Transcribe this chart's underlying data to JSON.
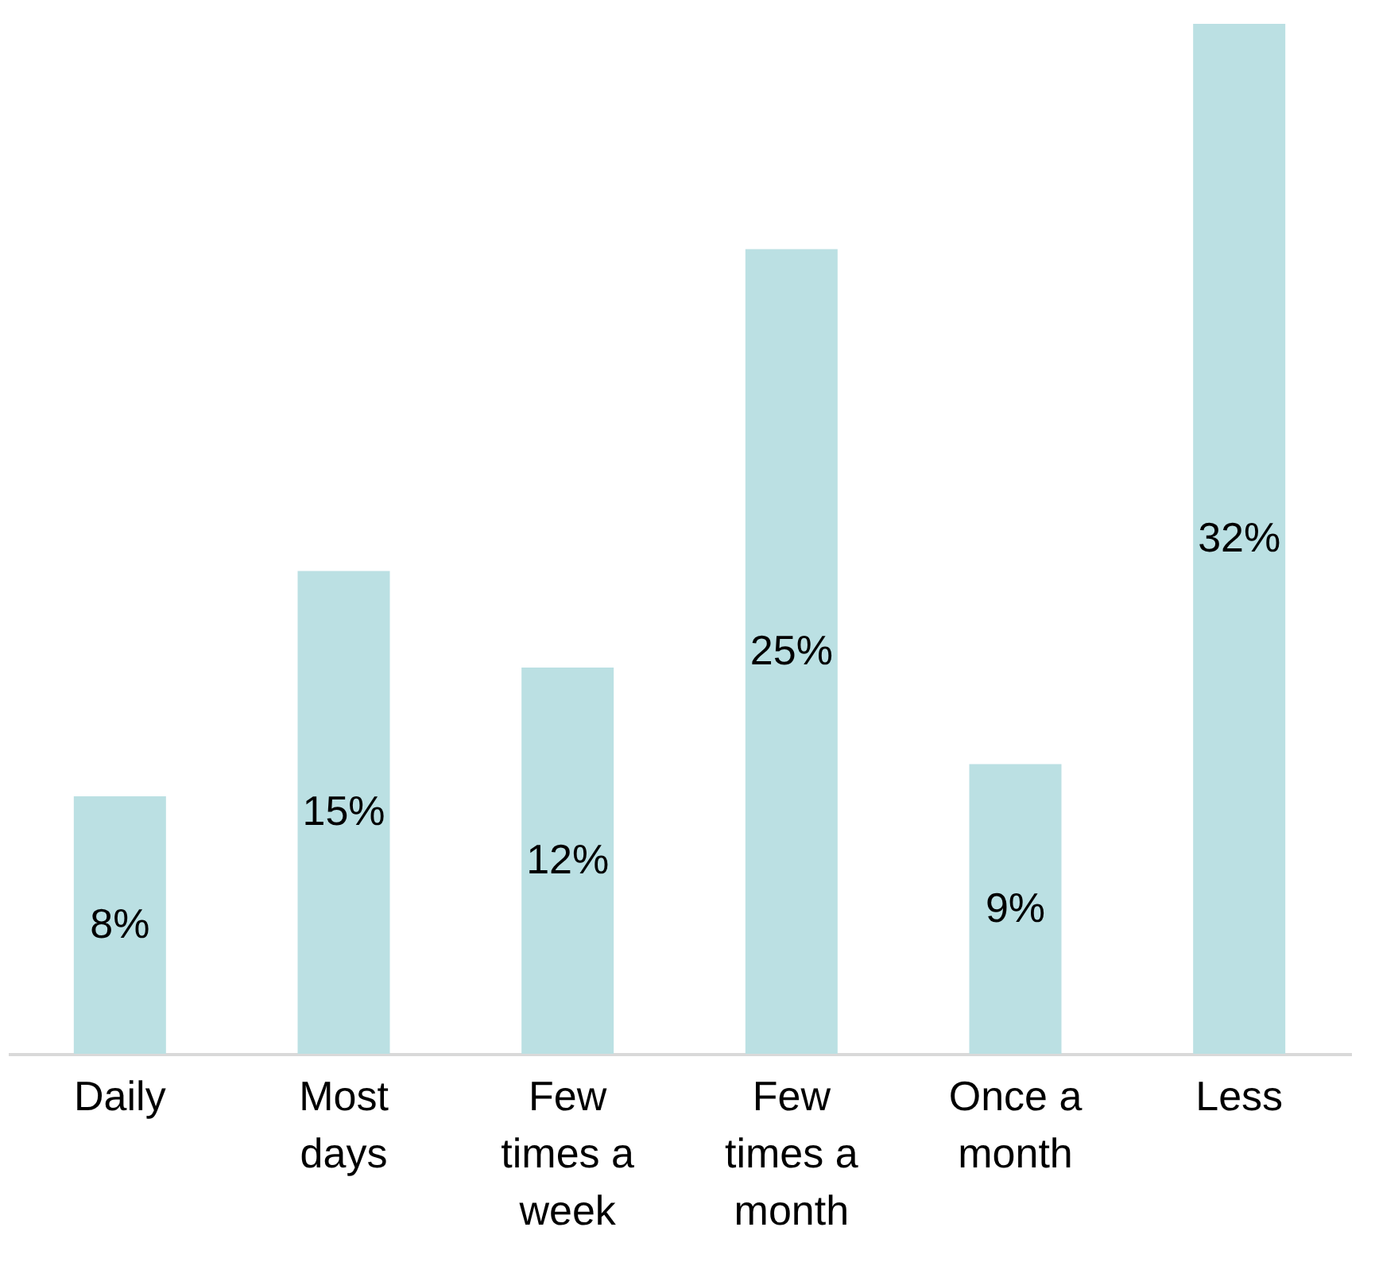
{
  "chart_data": {
    "type": "bar",
    "categories": [
      "Daily",
      "Most days",
      "Few times a week",
      "Few times a month",
      "Once a month",
      "Less"
    ],
    "series": [
      {
        "color": "#bbe0e3",
        "values": [
          8,
          15,
          12,
          25,
          9,
          32
        ],
        "value_labels": [
          "8%",
          "15%",
          "12%",
          "25%",
          "9%",
          "32%"
        ]
      }
    ]
  }
}
